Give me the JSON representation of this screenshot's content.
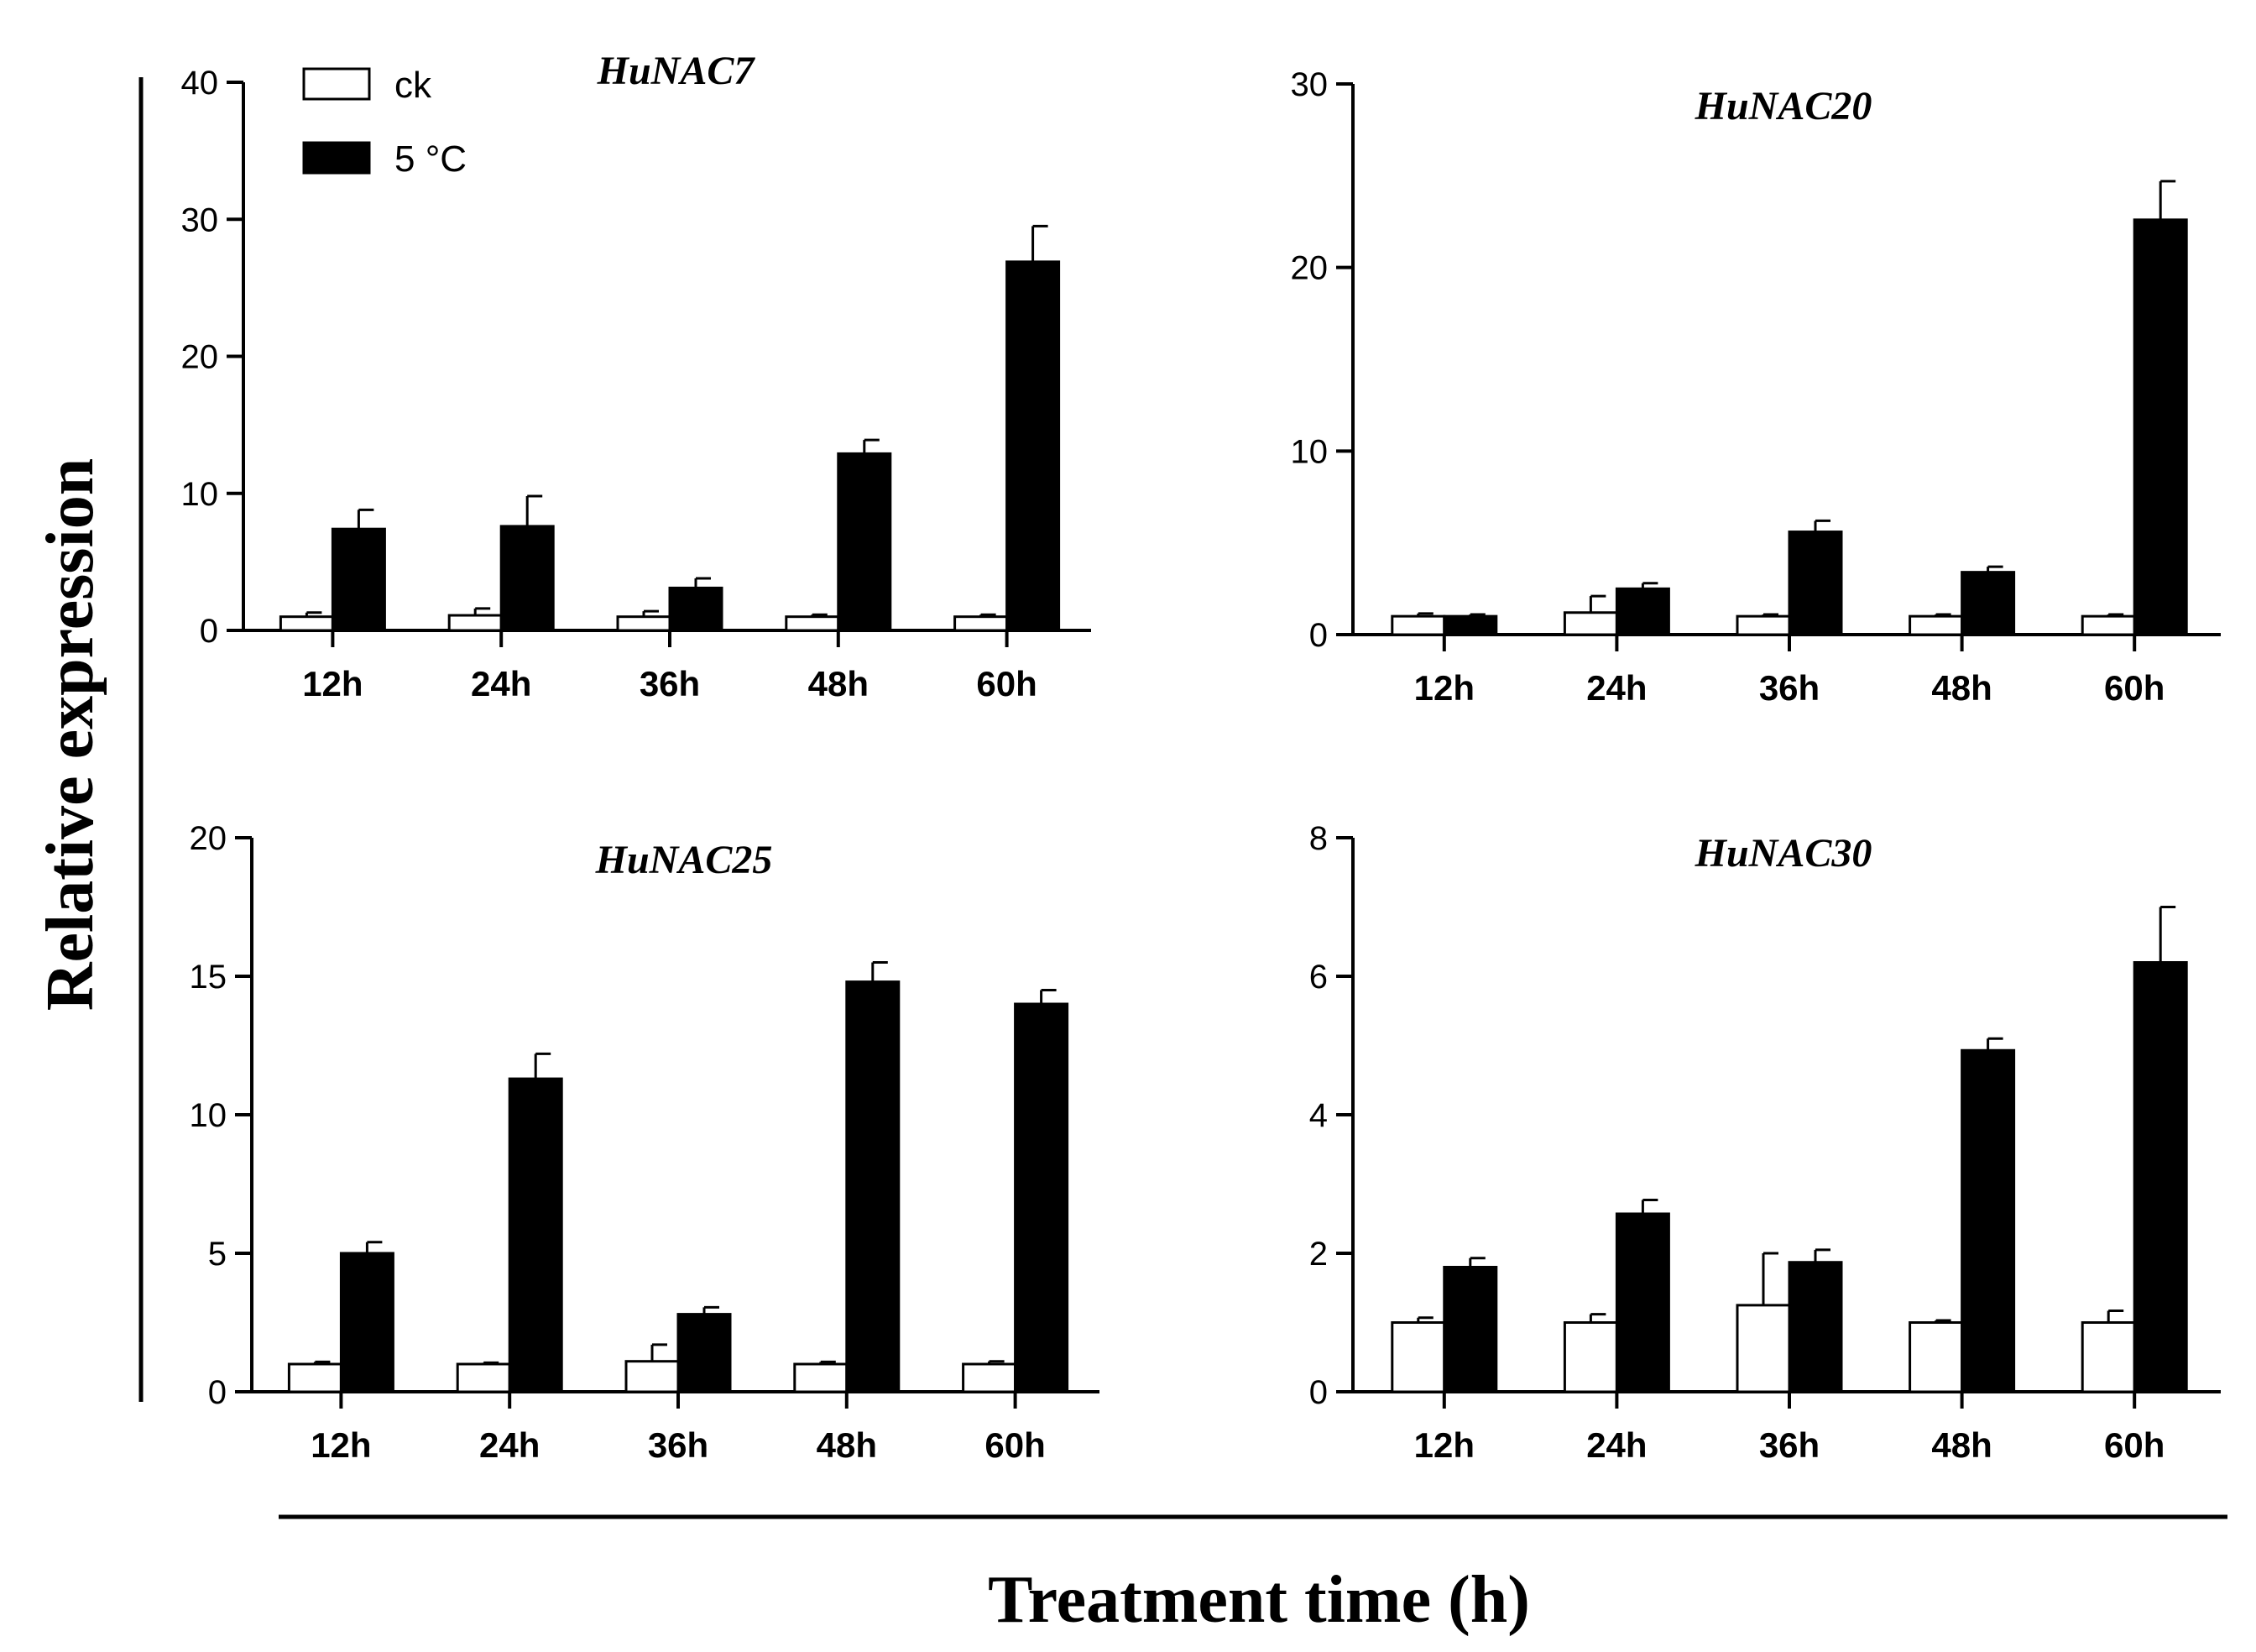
{
  "figure": {
    "ylabel": "Relative expression",
    "xlabel": "Treatment time (h)",
    "colors": {
      "ck": "#ffffff",
      "treat": "#000000",
      "axis": "#000000"
    }
  },
  "legend": {
    "items": [
      {
        "label": "ck",
        "color": "#ffffff"
      },
      {
        "label": "5 °C",
        "color": "#000000"
      }
    ]
  },
  "chart_data": [
    {
      "type": "bar",
      "title": "HuNAC7",
      "categories": [
        "12h",
        "24h",
        "36h",
        "48h",
        "60h"
      ],
      "ylim": [
        0,
        40
      ],
      "yticks": [
        0,
        10,
        20,
        30,
        40
      ],
      "xlabel": "",
      "ylabel": "Relative expression",
      "series": [
        {
          "name": "ck",
          "values": [
            1.0,
            1.1,
            1.0,
            1.0,
            1.0
          ],
          "errors": [
            0.3,
            0.5,
            0.4,
            0.15,
            0.15
          ]
        },
        {
          "name": "5 °C",
          "values": [
            7.4,
            7.6,
            3.1,
            12.9,
            26.9
          ],
          "errors": [
            1.4,
            2.2,
            0.7,
            1.0,
            2.6
          ]
        }
      ]
    },
    {
      "type": "bar",
      "title": "HuNAC20",
      "categories": [
        "12h",
        "24h",
        "36h",
        "48h",
        "60h"
      ],
      "ylim": [
        0,
        30
      ],
      "yticks": [
        0,
        10,
        20,
        30
      ],
      "xlabel": "",
      "ylabel": "Relative expression",
      "series": [
        {
          "name": "ck",
          "values": [
            1.0,
            1.2,
            1.0,
            1.0,
            1.0
          ],
          "errors": [
            0.15,
            0.9,
            0.1,
            0.1,
            0.1
          ]
        },
        {
          "name": "5 °C",
          "values": [
            1.0,
            2.5,
            5.6,
            3.4,
            22.6
          ],
          "errors": [
            0.1,
            0.3,
            0.6,
            0.3,
            2.1
          ]
        }
      ]
    },
    {
      "type": "bar",
      "title": "HuNAC25",
      "categories": [
        "12h",
        "24h",
        "36h",
        "48h",
        "60h"
      ],
      "ylim": [
        0,
        20
      ],
      "yticks": [
        0,
        5,
        10,
        15,
        20
      ],
      "xlabel": "",
      "ylabel": "Relative expression",
      "series": [
        {
          "name": "ck",
          "values": [
            1.0,
            1.0,
            1.1,
            1.0,
            1.0
          ],
          "errors": [
            0.08,
            0.05,
            0.6,
            0.08,
            0.1
          ]
        },
        {
          "name": "5 °C",
          "values": [
            5.0,
            11.3,
            2.8,
            14.8,
            14.0
          ],
          "errors": [
            0.4,
            0.9,
            0.25,
            0.7,
            0.5
          ]
        }
      ]
    },
    {
      "type": "bar",
      "title": "HuNAC30",
      "categories": [
        "12h",
        "24h",
        "36h",
        "48h",
        "60h"
      ],
      "ylim": [
        0,
        8
      ],
      "yticks": [
        0,
        2,
        4,
        6,
        8
      ],
      "xlabel": "",
      "ylabel": "Relative expression",
      "series": [
        {
          "name": "ck",
          "values": [
            1.0,
            1.0,
            1.25,
            1.0,
            1.0
          ],
          "errors": [
            0.07,
            0.12,
            0.75,
            0.03,
            0.17
          ]
        },
        {
          "name": "5 °C",
          "values": [
            1.8,
            2.57,
            1.87,
            4.93,
            6.2
          ],
          "errors": [
            0.13,
            0.2,
            0.18,
            0.17,
            0.8
          ]
        }
      ]
    }
  ]
}
